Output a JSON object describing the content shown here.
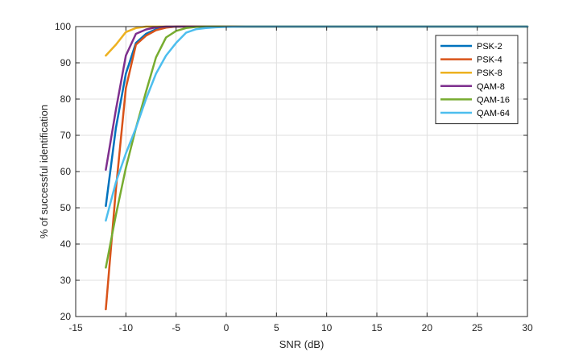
{
  "chart_data": {
    "type": "line",
    "title": "",
    "xlabel": "SNR (dB)",
    "ylabel": "% of successful identification",
    "xlim": [
      -15,
      30
    ],
    "ylim": [
      20,
      100
    ],
    "xticks": [
      -15,
      -10,
      -5,
      0,
      5,
      10,
      15,
      20,
      25,
      30
    ],
    "yticks": [
      20,
      30,
      40,
      50,
      60,
      70,
      80,
      90,
      100
    ],
    "grid": true,
    "legend_position": "top-right",
    "series": [
      {
        "name": "PSK-2",
        "color": "#0072BD",
        "x": [
          -12,
          -11,
          -10,
          -9,
          -8,
          -7,
          -6,
          -5,
          -4,
          -3,
          -2,
          0,
          30
        ],
        "y": [
          50.5,
          72,
          87,
          95.5,
          98,
          99.3,
          99.8,
          100,
          100,
          100,
          100,
          100,
          100
        ]
      },
      {
        "name": "PSK-4",
        "color": "#D95319",
        "x": [
          -12,
          -11,
          -10,
          -9,
          -8,
          -7,
          -6,
          -5,
          -4,
          -3,
          -2,
          0,
          30
        ],
        "y": [
          22,
          55,
          83,
          95,
          97.5,
          99,
          99.7,
          100,
          100,
          100,
          100,
          100,
          100
        ]
      },
      {
        "name": "PSK-8",
        "color": "#EDB120",
        "x": [
          -12,
          -11,
          -10,
          -9,
          -8,
          -7,
          -6,
          -5,
          -4,
          -3,
          0,
          30
        ],
        "y": [
          92,
          95,
          98.5,
          99.6,
          100,
          100,
          100,
          100,
          100,
          100,
          100,
          100
        ]
      },
      {
        "name": "QAM-8",
        "color": "#7E2F8E",
        "x": [
          -12,
          -11,
          -10,
          -9,
          -8,
          -7,
          -6,
          -5,
          -4,
          -3,
          0,
          30
        ],
        "y": [
          60.5,
          77,
          92,
          98,
          99.2,
          99.8,
          100,
          100,
          100,
          100,
          100,
          100
        ]
      },
      {
        "name": "QAM-16",
        "color": "#77AC30",
        "x": [
          -12,
          -11,
          -10,
          -9,
          -8,
          -7,
          -6,
          -5,
          -4,
          -3,
          -2,
          0,
          30
        ],
        "y": [
          33.5,
          48,
          61,
          72,
          82,
          91.5,
          97,
          98.8,
          99.6,
          99.9,
          100,
          100,
          100
        ]
      },
      {
        "name": "QAM-64",
        "color": "#4DBEEE",
        "x": [
          -12,
          -11,
          -10,
          -9,
          -8,
          -7,
          -6,
          -5,
          -4,
          -3,
          -2,
          -1,
          0,
          2,
          30
        ],
        "y": [
          46.5,
          57,
          65,
          72,
          80,
          87,
          92,
          95.5,
          98.3,
          99.3,
          99.6,
          99.8,
          99.9,
          100,
          100
        ]
      }
    ]
  }
}
